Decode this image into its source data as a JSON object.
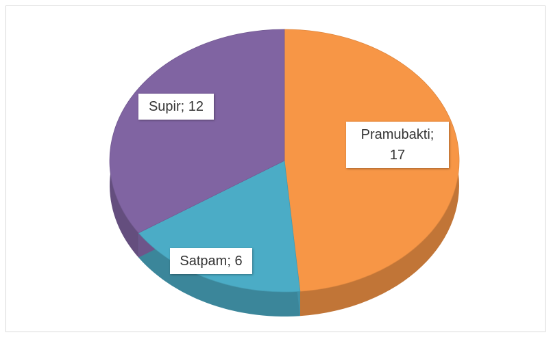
{
  "chart_data": {
    "type": "pie3d",
    "values": [
      17,
      6,
      12
    ],
    "value_labels": [
      "Pramubakti; 17",
      "Satpam; 6",
      "Supir; 12"
    ],
    "colors": [
      "#f79646",
      "#4bacc6",
      "#8064a2"
    ]
  }
}
